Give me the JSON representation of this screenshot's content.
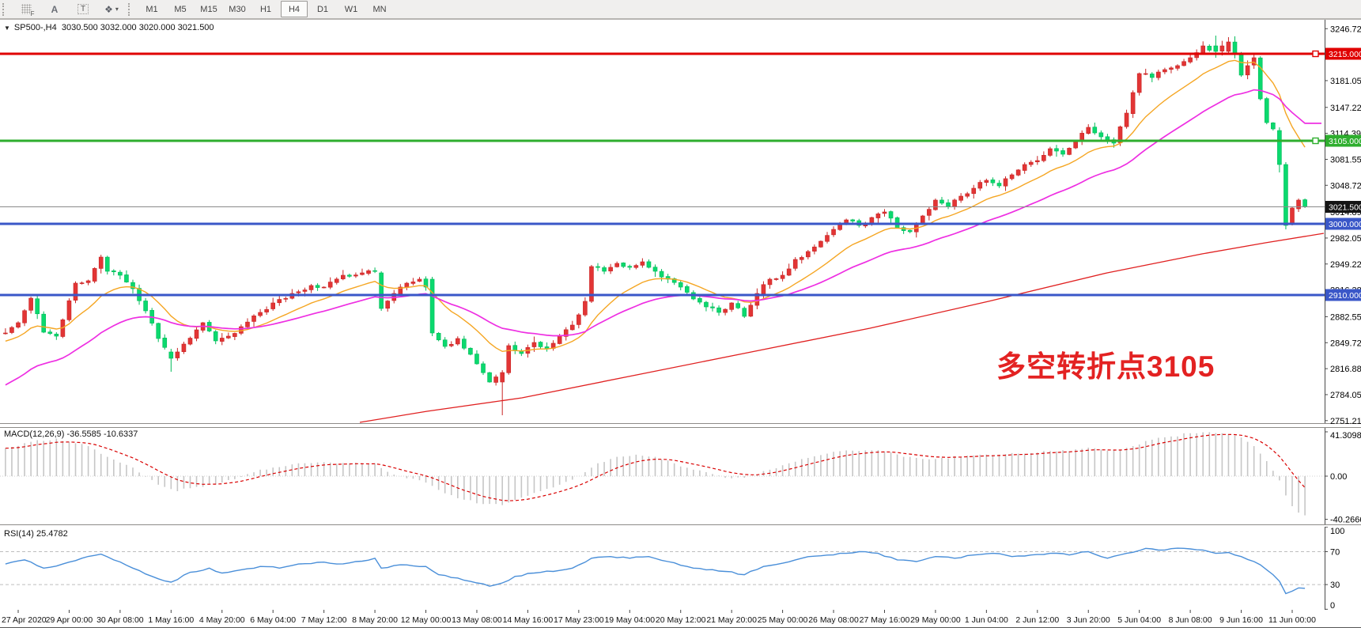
{
  "toolbar": {
    "tools": [
      {
        "id": "chart-grid-tool",
        "glyph": "grid",
        "sub": "F"
      },
      {
        "id": "label-tool",
        "glyph": "A"
      },
      {
        "id": "text-tool",
        "glyph": "T"
      },
      {
        "id": "shapes-tool",
        "glyph": "❖",
        "caret": "▾"
      }
    ],
    "timeframes": [
      {
        "label": "M1",
        "active": false
      },
      {
        "label": "M5",
        "active": false
      },
      {
        "label": "M15",
        "active": false
      },
      {
        "label": "M30",
        "active": false
      },
      {
        "label": "H1",
        "active": false
      },
      {
        "label": "H4",
        "active": true
      },
      {
        "label": "D1",
        "active": false
      },
      {
        "label": "W1",
        "active": false
      },
      {
        "label": "MN",
        "active": false
      }
    ]
  },
  "chart": {
    "title": {
      "dropdown": "▼",
      "symbol_period": "SP500-,H4",
      "ohlc": "3030.500 3032.000 3020.000 3021.500"
    },
    "annotation": {
      "text": "多空转折点3105",
      "color": "#e32222"
    },
    "colors": {
      "up_candle": "#e23535",
      "up_border": "#c92424",
      "down_candle": "#0bd96e",
      "down_border": "#00bb59",
      "ma_fast": "#f5a623",
      "ma_mid": "#ee2fe2",
      "ma_slow": "#e02020",
      "rsi_line": "#4a8fd9",
      "macd_hist": "#c6c6c6",
      "macd_signal": "#d90000",
      "axis_line": "#4a4a4a",
      "grid_dashed": "#bdbdbd",
      "current_price_line": "#8a8a8a"
    }
  },
  "panels": {
    "macd": {
      "label": "MACD(12,26,9)",
      "values": "-36.5585 -10.6337",
      "axis_labels": [
        {
          "text": "41.3098",
          "value": 41.3098
        },
        {
          "text": "0.00",
          "value": 0
        },
        {
          "text": "-40.2666",
          "value": -40.2666
        }
      ]
    },
    "rsi": {
      "label": "RSI(14)",
      "value": "25.4782",
      "axis_labels": [
        {
          "text": "100",
          "value": 100
        },
        {
          "text": "70",
          "value": 70
        },
        {
          "text": "30",
          "value": 30
        },
        {
          "text": "0",
          "value": 0
        }
      ],
      "dashed_levels": [
        70,
        30
      ]
    }
  },
  "price_axis": {
    "labels": [
      "3246.725",
      "3181.055",
      "3147.225",
      "3114.390",
      "3081.555",
      "3048.720",
      "3014.890",
      "2982.055",
      "2949.220",
      "2916.385",
      "2882.555",
      "2849.720",
      "2816.885",
      "2784.050",
      "2751.215"
    ],
    "badges": [
      {
        "text": "3215.000",
        "price": 3215.0,
        "bg": "#e00000"
      },
      {
        "text": "3105.000",
        "price": 3105.0,
        "bg": "#2eae2e"
      },
      {
        "text": "3021.500",
        "price": 3021.5,
        "bg": "#141414"
      },
      {
        "text": "3000.000",
        "price": 3000.0,
        "bg": "#3a57c8"
      },
      {
        "text": "2910.000",
        "price": 2910.0,
        "bg": "#3a57c8"
      }
    ]
  },
  "chart_data": {
    "type": "candlestick",
    "symbol": "SP500",
    "timeframe": "H4",
    "last_bar_ohlc": {
      "open": 3030.5,
      "high": 3032.0,
      "low": 3020.0,
      "close": 3021.5
    },
    "bar_count": 205,
    "price_range_visible": [
      2751.215,
      3246.725
    ],
    "horizontal_lines": [
      {
        "price": 3215.0,
        "color": "#e00000",
        "width": 3,
        "handle": true
      },
      {
        "price": 3105.0,
        "color": "#2eae2e",
        "width": 3,
        "handle": true
      },
      {
        "price": 3000.0,
        "color": "#3a57c8",
        "width": 3,
        "handle": false
      },
      {
        "price": 2910.0,
        "color": "#3a57c8",
        "width": 3,
        "handle": false
      }
    ],
    "current_price": 3021.5,
    "close_anchors": [
      [
        0,
        2862
      ],
      [
        2,
        2875
      ],
      [
        4,
        2906
      ],
      [
        6,
        2863
      ],
      [
        8,
        2858
      ],
      [
        11,
        2925
      ],
      [
        13,
        2928
      ],
      [
        15,
        2958
      ],
      [
        16,
        2940
      ],
      [
        18,
        2935
      ],
      [
        20,
        2918
      ],
      [
        22,
        2890
      ],
      [
        24,
        2855
      ],
      [
        26,
        2830
      ],
      [
        28,
        2848
      ],
      [
        31,
        2875
      ],
      [
        33,
        2852
      ],
      [
        35,
        2858
      ],
      [
        37,
        2870
      ],
      [
        40,
        2888
      ],
      [
        42,
        2900
      ],
      [
        45,
        2912
      ],
      [
        48,
        2922
      ],
      [
        50,
        2920
      ],
      [
        53,
        2935
      ],
      [
        56,
        2938
      ],
      [
        58,
        2940
      ],
      [
        59,
        2893
      ],
      [
        61,
        2912
      ],
      [
        63,
        2925
      ],
      [
        65,
        2930
      ],
      [
        66,
        2920
      ],
      [
        67,
        2862
      ],
      [
        69,
        2845
      ],
      [
        71,
        2855
      ],
      [
        73,
        2835
      ],
      [
        74,
        2823
      ],
      [
        76,
        2800
      ],
      [
        78,
        2812
      ],
      [
        79,
        2846
      ],
      [
        81,
        2836
      ],
      [
        83,
        2850
      ],
      [
        85,
        2842
      ],
      [
        87,
        2858
      ],
      [
        89,
        2872
      ],
      [
        90,
        2885
      ],
      [
        91,
        2902
      ],
      [
        92,
        2946
      ],
      [
        94,
        2940
      ],
      [
        96,
        2950
      ],
      [
        98,
        2945
      ],
      [
        100,
        2952
      ],
      [
        102,
        2940
      ],
      [
        104,
        2930
      ],
      [
        106,
        2920
      ],
      [
        108,
        2905
      ],
      [
        110,
        2895
      ],
      [
        112,
        2888
      ],
      [
        114,
        2900
      ],
      [
        116,
        2883
      ],
      [
        118,
        2912
      ],
      [
        120,
        2930
      ],
      [
        122,
        2935
      ],
      [
        124,
        2955
      ],
      [
        126,
        2965
      ],
      [
        128,
        2978
      ],
      [
        130,
        2993
      ],
      [
        132,
        3005
      ],
      [
        134,
        2998
      ],
      [
        136,
        3008
      ],
      [
        138,
        3015
      ],
      [
        140,
        2995
      ],
      [
        142,
        2990
      ],
      [
        144,
        3010
      ],
      [
        146,
        3030
      ],
      [
        148,
        3022
      ],
      [
        150,
        3035
      ],
      [
        152,
        3045
      ],
      [
        154,
        3055
      ],
      [
        156,
        3048
      ],
      [
        158,
        3062
      ],
      [
        160,
        3075
      ],
      [
        162,
        3080
      ],
      [
        164,
        3095
      ],
      [
        166,
        3088
      ],
      [
        168,
        3105
      ],
      [
        170,
        3122
      ],
      [
        172,
        3110
      ],
      [
        174,
        3102
      ],
      [
        176,
        3140
      ],
      [
        178,
        3190
      ],
      [
        180,
        3185
      ],
      [
        182,
        3195
      ],
      [
        184,
        3200
      ],
      [
        186,
        3210
      ],
      [
        188,
        3225
      ],
      [
        190,
        3218
      ],
      [
        192,
        3230
      ],
      [
        193,
        3215
      ],
      [
        194,
        3188
      ],
      [
        195,
        3200
      ],
      [
        196,
        3210
      ],
      [
        197,
        3158
      ],
      [
        198,
        3128
      ],
      [
        199,
        3120
      ],
      [
        200,
        3075
      ],
      [
        201,
        2998
      ],
      [
        202,
        3020
      ],
      [
        203,
        3030
      ],
      [
        204,
        3021.5
      ]
    ],
    "special_bars": {
      "26": [
        2838,
        2842,
        2813,
        2830
      ],
      "59": [
        2938,
        2940,
        2890,
        2893
      ],
      "67": [
        2930,
        2933,
        2858,
        2862
      ],
      "78": [
        2800,
        2815,
        2758,
        2812
      ],
      "92": [
        2902,
        2948,
        2900,
        2946
      ],
      "190": [
        3225,
        3238,
        3210,
        3218
      ],
      "192": [
        3218,
        3236,
        3214,
        3230
      ],
      "200": [
        3118,
        3122,
        3065,
        3075
      ],
      "201": [
        3075,
        3078,
        2993,
        2998
      ],
      "202": [
        3001,
        3022,
        2998,
        3020
      ],
      "203": [
        3019,
        3032,
        3015,
        3030
      ],
      "204": [
        3030.5,
        3032,
        3020,
        3021.5
      ]
    },
    "moving_averages": {
      "fast": {
        "type": "ema",
        "period": 13,
        "seed": 2850,
        "color": "#f5a623"
      },
      "mid": {
        "type": "ema",
        "period": 32,
        "seed": 2792,
        "color": "#ee2fe2"
      },
      "slow_anchors_x_price": [
        [
          455,
          2749
        ],
        [
          540,
          2763
        ],
        [
          660,
          2780
        ],
        [
          800,
          2808
        ],
        [
          950,
          2838
        ],
        [
          1100,
          2868
        ],
        [
          1250,
          2902
        ],
        [
          1400,
          2938
        ],
        [
          1520,
          2962
        ],
        [
          1600,
          2976
        ],
        [
          1674,
          2988
        ]
      ]
    },
    "macd": {
      "current": -36.5585,
      "signal_current": -10.6337,
      "signal_period": 9,
      "ylim": [
        -40.2666,
        41.3098
      ],
      "anchors": [
        [
          0,
          26
        ],
        [
          4,
          32
        ],
        [
          8,
          35
        ],
        [
          12,
          30
        ],
        [
          16,
          18
        ],
        [
          20,
          8
        ],
        [
          24,
          -8
        ],
        [
          27,
          -14
        ],
        [
          30,
          -10
        ],
        [
          34,
          -6
        ],
        [
          38,
          2
        ],
        [
          42,
          8
        ],
        [
          46,
          12
        ],
        [
          50,
          13
        ],
        [
          54,
          12
        ],
        [
          58,
          12
        ],
        [
          60,
          4
        ],
        [
          63,
          -2
        ],
        [
          66,
          -6
        ],
        [
          69,
          -16
        ],
        [
          72,
          -22
        ],
        [
          75,
          -26
        ],
        [
          78,
          -27
        ],
        [
          81,
          -20
        ],
        [
          84,
          -14
        ],
        [
          87,
          -8
        ],
        [
          90,
          0
        ],
        [
          93,
          12
        ],
        [
          96,
          18
        ],
        [
          99,
          20
        ],
        [
          102,
          18
        ],
        [
          105,
          12
        ],
        [
          108,
          6
        ],
        [
          111,
          2
        ],
        [
          114,
          -2
        ],
        [
          117,
          0
        ],
        [
          120,
          6
        ],
        [
          123,
          12
        ],
        [
          126,
          17
        ],
        [
          129,
          21
        ],
        [
          132,
          24
        ],
        [
          135,
          24
        ],
        [
          138,
          23
        ],
        [
          141,
          18
        ],
        [
          144,
          16
        ],
        [
          147,
          17
        ],
        [
          150,
          18
        ],
        [
          153,
          20
        ],
        [
          156,
          20
        ],
        [
          159,
          21
        ],
        [
          162,
          22
        ],
        [
          165,
          23
        ],
        [
          168,
          25
        ],
        [
          171,
          26
        ],
        [
          174,
          24
        ],
        [
          177,
          28
        ],
        [
          180,
          34
        ],
        [
          183,
          37
        ],
        [
          186,
          40
        ],
        [
          189,
          41
        ],
        [
          191,
          40
        ],
        [
          193,
          38
        ],
        [
          194,
          36
        ],
        [
          195,
          32
        ],
        [
          196,
          28
        ],
        [
          197,
          21
        ],
        [
          198,
          14
        ],
        [
          199,
          5
        ],
        [
          200,
          -4
        ],
        [
          201,
          -18
        ],
        [
          202,
          -28
        ],
        [
          203,
          -34
        ],
        [
          204,
          -36.5585
        ]
      ]
    },
    "rsi": {
      "current": 25.4782,
      "ylim": [
        0,
        100
      ],
      "levels": [
        70,
        30
      ],
      "anchors": [
        [
          0,
          55
        ],
        [
          3,
          60
        ],
        [
          6,
          50
        ],
        [
          9,
          55
        ],
        [
          12,
          62
        ],
        [
          15,
          67
        ],
        [
          17,
          60
        ],
        [
          20,
          50
        ],
        [
          23,
          40
        ],
        [
          26,
          33
        ],
        [
          29,
          45
        ],
        [
          32,
          50
        ],
        [
          34,
          44
        ],
        [
          37,
          48
        ],
        [
          40,
          52
        ],
        [
          43,
          50
        ],
        [
          46,
          55
        ],
        [
          49,
          57
        ],
        [
          52,
          55
        ],
        [
          55,
          58
        ],
        [
          58,
          62
        ],
        [
          59,
          50
        ],
        [
          62,
          54
        ],
        [
          66,
          52
        ],
        [
          68,
          42
        ],
        [
          71,
          38
        ],
        [
          74,
          32
        ],
        [
          76,
          28
        ],
        [
          78,
          32
        ],
        [
          80,
          40
        ],
        [
          83,
          44
        ],
        [
          86,
          46
        ],
        [
          89,
          50
        ],
        [
          92,
          62
        ],
        [
          95,
          64
        ],
        [
          98,
          62
        ],
        [
          101,
          64
        ],
        [
          104,
          58
        ],
        [
          107,
          52
        ],
        [
          110,
          48
        ],
        [
          113,
          46
        ],
        [
          116,
          42
        ],
        [
          119,
          52
        ],
        [
          122,
          56
        ],
        [
          125,
          62
        ],
        [
          128,
          65
        ],
        [
          131,
          68
        ],
        [
          134,
          70
        ],
        [
          137,
          68
        ],
        [
          140,
          60
        ],
        [
          143,
          58
        ],
        [
          146,
          64
        ],
        [
          149,
          62
        ],
        [
          152,
          66
        ],
        [
          155,
          68
        ],
        [
          158,
          64
        ],
        [
          161,
          66
        ],
        [
          164,
          68
        ],
        [
          167,
          66
        ],
        [
          170,
          70
        ],
        [
          173,
          62
        ],
        [
          176,
          68
        ],
        [
          179,
          74
        ],
        [
          182,
          72
        ],
        [
          185,
          74
        ],
        [
          188,
          72
        ],
        [
          190,
          68
        ],
        [
          192,
          69
        ],
        [
          194,
          64
        ],
        [
          196,
          58
        ],
        [
          197,
          54
        ],
        [
          198,
          48
        ],
        [
          199,
          42
        ],
        [
          200,
          34
        ],
        [
          201,
          19
        ],
        [
          202,
          22
        ],
        [
          203,
          26
        ],
        [
          204,
          25.4782
        ]
      ]
    },
    "time_axis_labels": [
      "27 Apr 2020",
      "29 Apr 00:00",
      "30 Apr 08:00",
      "1 May 16:00",
      "4 May 20:00",
      "6 May 04:00",
      "7 May 12:00",
      "8 May 20:00",
      "12 May 00:00",
      "13 May 08:00",
      "14 May 16:00",
      "17 May 23:00",
      "19 May 04:00",
      "20 May 12:00",
      "21 May 20:00",
      "25 May 00:00",
      "26 May 08:00",
      "27 May 16:00",
      "29 May 00:00",
      "1 Jun 04:00",
      "2 Jun 12:00",
      "3 Jun 20:00",
      "5 Jun 04:00",
      "8 Jun 08:00",
      "9 Jun 16:00",
      "11 Jun 00:00"
    ]
  }
}
